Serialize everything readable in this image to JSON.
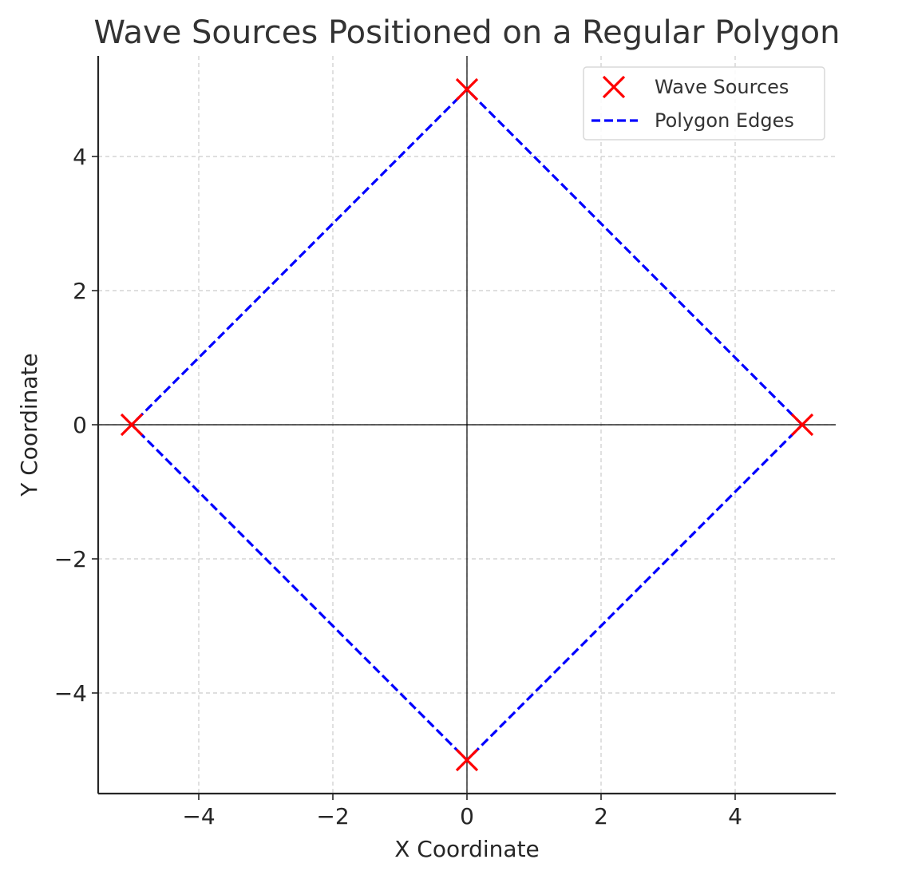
{
  "chart_data": {
    "type": "scatter",
    "title": "Wave Sources Positioned on a Regular Polygon",
    "xlabel": "X Coordinate",
    "ylabel": "Y Coordinate",
    "xlim": [
      -5.5,
      5.5
    ],
    "ylim": [
      -5.5,
      5.5
    ],
    "xticks": [
      -4,
      -2,
      0,
      2,
      4
    ],
    "yticks": [
      -4,
      -2,
      0,
      2,
      4
    ],
    "xtick_labels": [
      "−4",
      "−2",
      "0",
      "2",
      "4"
    ],
    "ytick_labels": [
      "−4",
      "−2",
      "0",
      "2",
      "4"
    ],
    "grid": true,
    "zero_lines": true,
    "legend_position": "top-right",
    "series": [
      {
        "name": "Wave Sources",
        "kind": "scatter",
        "marker": "x",
        "color": "#ff0000",
        "x": [
          5,
          0,
          -5,
          0
        ],
        "y": [
          0,
          5,
          0,
          -5
        ]
      },
      {
        "name": "Polygon Edges",
        "kind": "line",
        "style": "dashed",
        "color": "#0000ff",
        "x": [
          5,
          0,
          -5,
          0,
          5
        ],
        "y": [
          0,
          5,
          0,
          -5,
          0
        ]
      }
    ]
  }
}
